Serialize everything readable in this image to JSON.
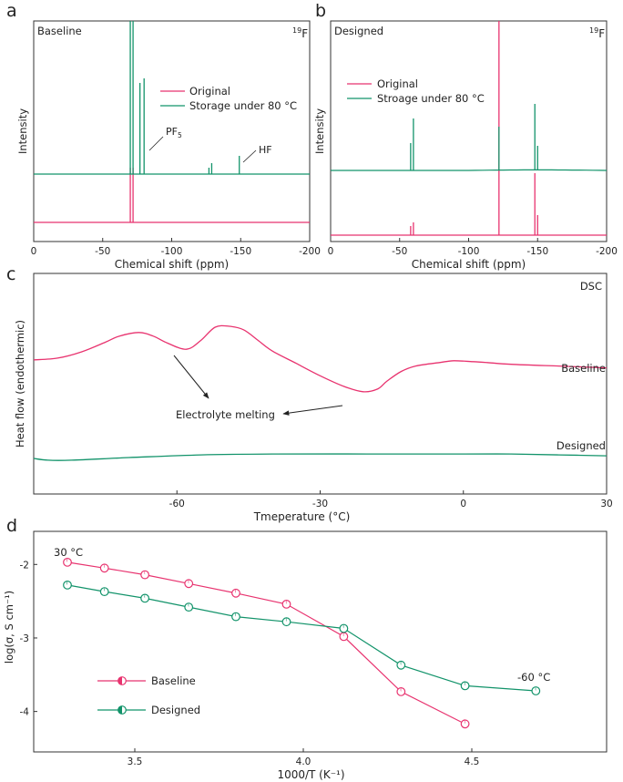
{
  "colors": {
    "baseline": "#e8336f",
    "designed": "#12936a",
    "axis": "#333333"
  },
  "panel_a": {
    "panel_label": "a",
    "corner_label": "Baseline",
    "nucleus": "19",
    "nucleus_element": "F",
    "legend": {
      "original": "Original",
      "storage": "Storage under 80 °C"
    },
    "annotations": {
      "pf5_base": "PF",
      "pf5_sub": "5",
      "hf": "HF"
    }
  },
  "panel_b": {
    "panel_label": "b",
    "corner_label": "Designed",
    "nucleus": "19",
    "nucleus_element": "F",
    "legend": {
      "original": "Original",
      "storage": "Stroage under 80 °C"
    }
  },
  "panel_c": {
    "panel_label": "c",
    "corner_label": "DSC",
    "annotation": "Electrolyte melting",
    "label_baseline": "Baseline",
    "label_designed": "Designed"
  },
  "panel_d": {
    "panel_label": "d",
    "label_30": "30 °C",
    "label_m60": "-60 °C",
    "legend": {
      "baseline": "Baseline",
      "designed": "Designed"
    }
  },
  "chart_data": [
    {
      "id": "a",
      "type": "line",
      "title": "Baseline",
      "xlabel": "Chemical shift (ppm)",
      "ylabel": "Intensity",
      "xlim": [
        0,
        -200
      ],
      "x_ticks": [
        "0",
        "-50",
        "-100",
        "-150",
        "-200"
      ],
      "series": [
        {
          "name": "Original",
          "peaks_ppm": [
            -70,
            -72
          ]
        },
        {
          "name": "Storage under 80 °C",
          "peaks_ppm": [
            -70,
            -72,
            -77,
            -80,
            -127,
            -129,
            -149
          ]
        }
      ],
      "annotations": [
        "PF5",
        "HF"
      ]
    },
    {
      "id": "b",
      "type": "line",
      "title": "Designed",
      "xlabel": "Chemical shift (ppm)",
      "ylabel": "Intensity",
      "xlim": [
        0,
        -200
      ],
      "x_ticks": [
        "0",
        "-50",
        "-100",
        "-150",
        "-200"
      ],
      "series": [
        {
          "name": "Original",
          "peaks_ppm": [
            -58,
            -60,
            -122,
            -148,
            -150
          ]
        },
        {
          "name": "Stroage under 80 °C",
          "peaks_ppm": [
            -58,
            -60,
            -122,
            -148,
            -150
          ]
        }
      ]
    },
    {
      "id": "c",
      "type": "line",
      "title": "DSC",
      "xlabel": "Tmeperature (°C)",
      "ylabel": "Heat flow (endothermic)",
      "xlim": [
        -90,
        30
      ],
      "x_ticks": [
        "-60",
        "-30",
        "0",
        "30"
      ],
      "series": [
        {
          "name": "Baseline",
          "x": [
            -90,
            -85,
            -80,
            -75,
            -72,
            -68,
            -65,
            -62,
            -58,
            -55,
            -52,
            -49,
            -46,
            -43,
            -40,
            -35,
            -30,
            -25,
            -21,
            -18,
            -16,
            -13,
            -10,
            -5,
            -2,
            2,
            5,
            10,
            20,
            30
          ],
          "y": [
            0.62,
            0.64,
            0.71,
            0.82,
            0.89,
            0.93,
            0.89,
            0.81,
            0.74,
            0.84,
            0.99,
            1.0,
            0.96,
            0.84,
            0.72,
            0.58,
            0.44,
            0.32,
            0.26,
            0.29,
            0.38,
            0.49,
            0.55,
            0.59,
            0.61,
            0.6,
            0.59,
            0.57,
            0.55,
            0.53
          ]
        },
        {
          "name": "Designed",
          "x": [
            -90,
            -87,
            -82,
            -70,
            -55,
            -40,
            -20,
            0,
            10,
            20,
            30
          ],
          "y": [
            0.0,
            -0.02,
            -0.02,
            0.01,
            0.04,
            0.05,
            0.05,
            0.05,
            0.05,
            0.04,
            0.03
          ]
        }
      ],
      "annotations": [
        "Electrolyte melting"
      ]
    },
    {
      "id": "d",
      "type": "line",
      "xlabel": "1000/T (K⁻¹)",
      "ylabel": "log(σ, S cm⁻¹)",
      "xlim": [
        3.2,
        4.9
      ],
      "ylim": [
        -4.55,
        -1.55
      ],
      "x_ticks": [
        "3.5",
        "4.0",
        "4.5"
      ],
      "y_ticks": [
        "-2",
        "-3",
        "-4"
      ],
      "series": [
        {
          "name": "Baseline",
          "x": [
            3.3,
            3.41,
            3.53,
            3.66,
            3.8,
            3.95,
            4.12,
            4.29,
            4.48
          ],
          "y": [
            -1.97,
            -2.05,
            -2.14,
            -2.26,
            -2.39,
            -2.54,
            -2.98,
            -3.73,
            -4.17
          ]
        },
        {
          "name": "Designed",
          "x": [
            3.3,
            3.41,
            3.53,
            3.66,
            3.8,
            3.95,
            4.12,
            4.29,
            4.48,
            4.69
          ],
          "y": [
            -2.28,
            -2.37,
            -2.46,
            -2.58,
            -2.71,
            -2.78,
            -2.87,
            -3.37,
            -3.65,
            -3.72
          ]
        }
      ],
      "annotations": [
        "30 °C",
        "-60 °C"
      ]
    }
  ]
}
